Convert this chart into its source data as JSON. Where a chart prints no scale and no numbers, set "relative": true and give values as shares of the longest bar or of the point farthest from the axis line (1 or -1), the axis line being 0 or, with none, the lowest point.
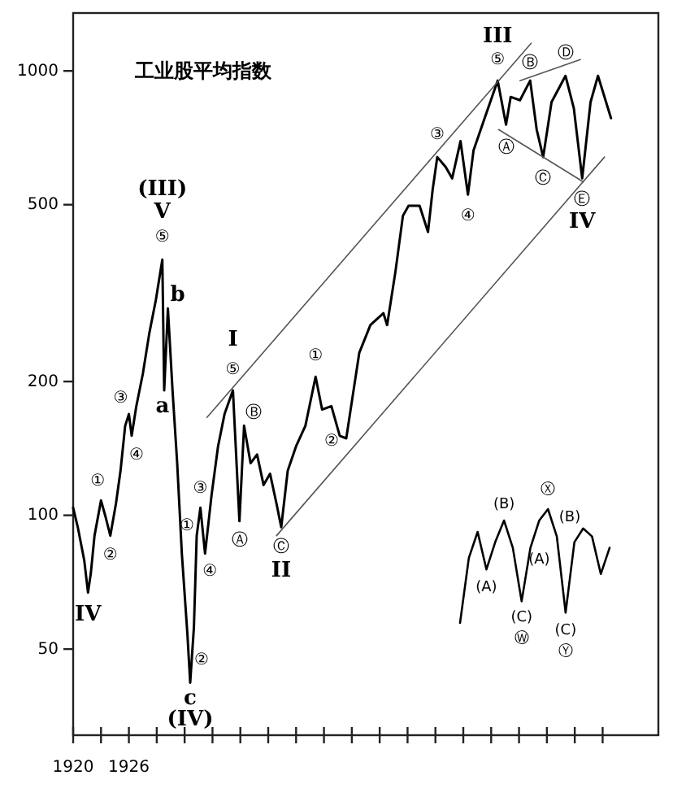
{
  "chart_data": [
    {
      "type": "line",
      "title": "工业股平均指数",
      "log": true,
      "xlim": [
        1920,
        1983
      ],
      "ylim": [
        32,
        1350
      ],
      "xticks": [
        1920,
        {
          "value": 1923,
          "label": null
        },
        1926,
        {
          "value": 1929,
          "label": null
        },
        {
          "value": 1932,
          "label": null
        },
        {
          "value": 1935,
          "label": null
        },
        {
          "value": 1938,
          "label": null
        },
        {
          "value": 1941,
          "label": null
        },
        {
          "value": 1944,
          "label": null
        },
        {
          "value": 1947,
          "label": null
        },
        {
          "value": 1950,
          "label": null
        },
        {
          "value": 1953,
          "label": null
        },
        {
          "value": 1956,
          "label": null
        },
        {
          "value": 1959,
          "label": null
        },
        {
          "value": 1962,
          "label": null
        },
        {
          "value": 1965,
          "label": null
        },
        {
          "value": 1968,
          "label": null
        },
        {
          "value": 1971,
          "label": null
        },
        {
          "value": 1974,
          "label": null
        },
        {
          "value": 1977,
          "label": null
        }
      ],
      "yticks": [
        50,
        100,
        200,
        500,
        1000
      ],
      "x": [
        1920.0,
        1920.5,
        1921.2,
        1921.6,
        1921.9,
        1922.3,
        1923.0,
        1923.5,
        1924.0,
        1924.6,
        1925.1,
        1925.6,
        1926.0,
        1926.3,
        1926.8,
        1927.5,
        1928.2,
        1928.9,
        1929.6,
        1929.8,
        1930.2,
        1930.7,
        1931.2,
        1931.7,
        1932.3,
        1932.6,
        1933.0,
        1933.3,
        1933.7,
        1934.2,
        1934.9,
        1935.6,
        1936.3,
        1937.2,
        1937.9,
        1938.4,
        1939.1,
        1939.8,
        1940.5,
        1941.2,
        1941.9,
        1942.4,
        1943.1,
        1944.0,
        1945.0,
        1946.1,
        1946.8,
        1947.8,
        1948.7,
        1949.4,
        1950.8,
        1952.0,
        1953.4,
        1953.8,
        1954.7,
        1955.5,
        1956.1,
        1957.3,
        1958.2,
        1958.7,
        1959.2,
        1960.1,
        1960.8,
        1961.7,
        1962.5,
        1963.1,
        1964.3,
        1965.7,
        1966.6,
        1967.1,
        1968.1,
        1969.2,
        1969.9,
        1970.6,
        1971.5,
        1973.0,
        1973.9,
        1974.8,
        1975.7,
        1976.5,
        1977.9
      ],
      "series": [
        {
          "color": "#000000",
          "values": [
            104,
            94,
            79,
            67,
            74,
            90,
            108,
            99,
            90,
            106,
            126,
            159,
            169,
            151,
            176,
            208,
            257,
            305,
            376,
            191,
            292,
            191,
            131,
            82,
            54,
            42,
            56,
            90,
            104,
            82,
            111,
            143,
            169,
            191,
            97,
            159,
            131,
            137,
            117,
            124,
            106,
            94,
            126,
            143,
            159,
            205,
            173,
            176,
            151,
            149,
            232,
            268,
            285,
            268,
            354,
            472,
            497,
            497,
            434,
            540,
            640,
            608,
            573,
            695,
            527,
            662,
            783,
            951,
            757,
            874,
            859,
            951,
            738,
            640,
            851,
            975,
            824,
            573,
            851,
            975,
            783
          ]
        },
        {
          "type": "line",
          "color": "#555555",
          "x": [
            1934.4,
            1969.3
          ],
          "values": [
            166,
            1154
          ]
        },
        {
          "type": "line",
          "color": "#555555",
          "x": [
            1941.9,
            1977.2
          ],
          "values": [
            90,
            640
          ]
        },
        {
          "type": "line",
          "color": "#555555",
          "x": [
            1968.1,
            1974.6
          ],
          "values": [
            951,
            1061
          ]
        },
        {
          "type": "line",
          "color": "#555555",
          "x": [
            1965.8,
            1974.9
          ],
          "values": [
            738,
            563
          ]
        }
      ],
      "annotations": [
        {
          "text": "IV",
          "x": 1921.6,
          "y": 67
        },
        {
          "text": "①",
          "x": 1923.0,
          "y": 108
        },
        {
          "text": "②",
          "x": 1924.0,
          "y": 90
        },
        {
          "text": "③",
          "x": 1926.0,
          "y": 169
        },
        {
          "text": "④",
          "x": 1926.3,
          "y": 151
        },
        {
          "text": "(III)",
          "x": 1929.6,
          "y": 376
        },
        {
          "text": "V",
          "x": 1929.6,
          "y": 376
        },
        {
          "text": "⑤",
          "x": 1929.6,
          "y": 376
        },
        {
          "text": "b",
          "x": 1930.2,
          "y": 292
        },
        {
          "text": "a",
          "x": 1929.8,
          "y": 191
        },
        {
          "text": "①",
          "x": 1933.3,
          "y": 90
        },
        {
          "text": "③",
          "x": 1933.7,
          "y": 104
        },
        {
          "text": "④",
          "x": 1934.2,
          "y": 82
        },
        {
          "text": "②",
          "x": 1932.6,
          "y": 42
        },
        {
          "text": "c",
          "x": 1932.6,
          "y": 42
        },
        {
          "text": "(IV)",
          "x": 1932.6,
          "y": 42
        },
        {
          "text": "I",
          "x": 1937.2,
          "y": 191
        },
        {
          "text": "⑤",
          "x": 1937.2,
          "y": 191
        },
        {
          "text": "Ⓑ",
          "x": 1938.4,
          "y": 159
        },
        {
          "text": "Ⓐ",
          "x": 1937.9,
          "y": 97
        },
        {
          "text": "Ⓒ",
          "x": 1942.4,
          "y": 94
        },
        {
          "text": "II",
          "x": 1942.4,
          "y": 94
        },
        {
          "text": "①",
          "x": 1946.1,
          "y": 205
        },
        {
          "text": "②",
          "x": 1949.4,
          "y": 149
        },
        {
          "text": "③",
          "x": 1959.2,
          "y": 640
        },
        {
          "text": "④",
          "x": 1962.5,
          "y": 527
        },
        {
          "text": "III",
          "x": 1965.7,
          "y": 951
        },
        {
          "text": "⑤",
          "x": 1965.7,
          "y": 951
        },
        {
          "text": "Ⓑ",
          "x": 1969.2,
          "y": 951
        },
        {
          "text": "Ⓓ",
          "x": 1973.0,
          "y": 975
        },
        {
          "text": "Ⓐ",
          "x": 1966.6,
          "y": 757
        },
        {
          "text": "Ⓒ",
          "x": 1970.6,
          "y": 640
        },
        {
          "text": "Ⓔ",
          "x": 1974.8,
          "y": 573
        },
        {
          "text": "IV",
          "x": 1974.8,
          "y": 573
        }
      ]
    },
    {
      "type": "line",
      "relative": true,
      "categories": [
        null,
        null,
        null,
        null,
        null,
        null,
        null,
        null,
        null,
        null,
        null,
        null,
        null,
        null,
        null,
        null,
        null,
        null
      ],
      "series": [
        {
          "color": "#000000",
          "values": [
            0,
            0.57,
            0.8,
            0.47,
            0.71,
            0.9,
            0.66,
            0.19,
            0.66,
            0.9,
            1.0,
            0.76,
            0.09,
            0.71,
            0.83,
            0.76,
            0.43,
            0.66
          ]
        }
      ],
      "annotations": [
        "(A)",
        "(B)",
        "(C)",
        "Ⓦ",
        "Ⓧ",
        "(B)",
        "(A)",
        "(C)",
        "Ⓨ"
      ]
    }
  ]
}
